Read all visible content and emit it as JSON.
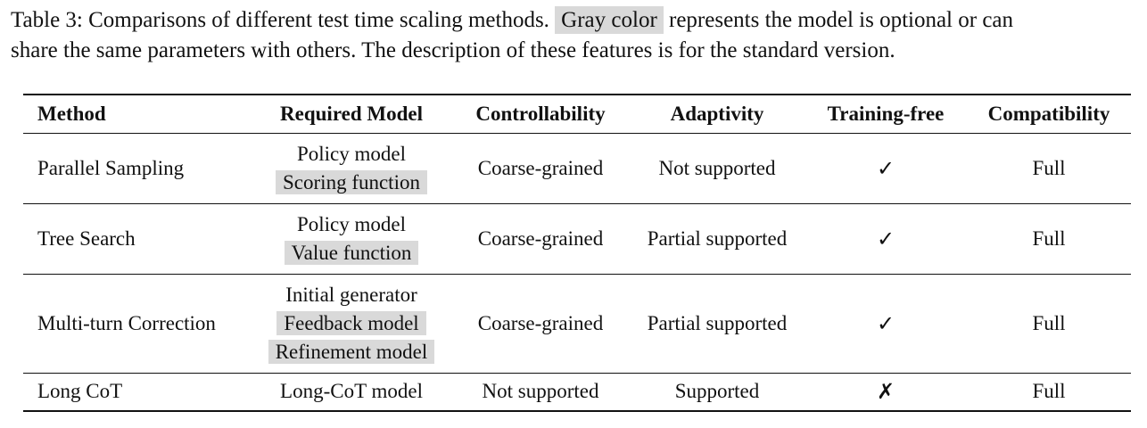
{
  "caption": {
    "before": "Table 3: Comparisons of different test time scaling methods.",
    "highlight": "Gray color",
    "after_line1": "represents the model is optional or can",
    "line2": "share the same parameters with others. The description of these features is for the standard version."
  },
  "table": {
    "headers": [
      "Method",
      "Required Model",
      "Controllability",
      "Adaptivity",
      "Training-free",
      "Compatibility"
    ],
    "rows": [
      {
        "method": "Parallel Sampling",
        "models": [
          {
            "name": "Policy model",
            "optional": false
          },
          {
            "name": "Scoring function",
            "optional": true
          }
        ],
        "controllability": "Coarse-grained",
        "adaptivity": "Not supported",
        "training_free": "✓",
        "compatibility": "Full"
      },
      {
        "method": "Tree Search",
        "models": [
          {
            "name": "Policy model",
            "optional": false
          },
          {
            "name": "Value function",
            "optional": true
          }
        ],
        "controllability": "Coarse-grained",
        "adaptivity": "Partial supported",
        "training_free": "✓",
        "compatibility": "Full"
      },
      {
        "method": "Multi-turn Correction",
        "models": [
          {
            "name": "Initial generator",
            "optional": false
          },
          {
            "name": "Feedback model",
            "optional": true
          },
          {
            "name": "Refinement model",
            "optional": true
          }
        ],
        "controllability": "Coarse-grained",
        "adaptivity": "Partial supported",
        "training_free": "✓",
        "compatibility": "Full"
      },
      {
        "method": "Long CoT",
        "models": [
          {
            "name": "Long-CoT model",
            "optional": false
          }
        ],
        "controllability": "Not supported",
        "adaptivity": "Supported",
        "training_free": "✗",
        "compatibility": "Full"
      }
    ]
  },
  "colors": {
    "optional_highlight": "#d9d9d9",
    "text": "#111111"
  }
}
